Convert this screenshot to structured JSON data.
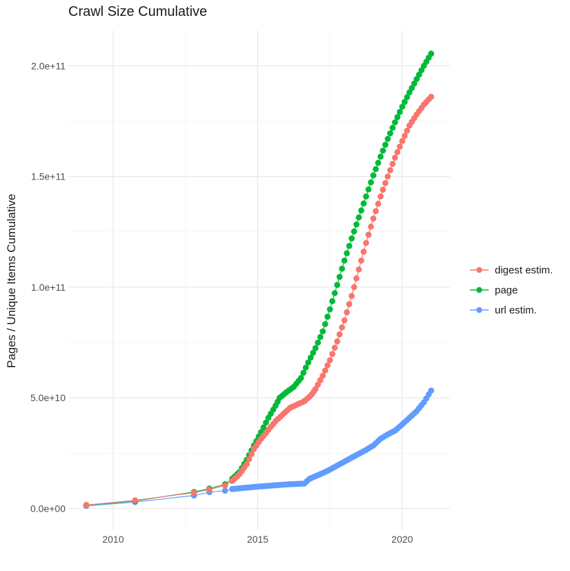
{
  "page": {
    "background": "#FFFFFF"
  },
  "chart_data": {
    "type": "line",
    "title": "Crawl Size Cumulative",
    "xlabel": "",
    "ylabel": "Pages / Unique Items Cumulative",
    "grid": true,
    "legend_position": "right",
    "xlim": [
      2008.45,
      2021.65
    ],
    "ylim": [
      -9500000000.0,
      216000000000.0
    ],
    "x_axis": {
      "ticks": [
        {
          "v": 2010,
          "label": "2010"
        },
        {
          "v": 2015,
          "label": "2015"
        },
        {
          "v": 2020,
          "label": "2020"
        }
      ],
      "minor": [
        2012.5,
        2017.5
      ]
    },
    "y_axis": {
      "ticks": [
        {
          "v": 0,
          "label": "0.0e+00"
        },
        {
          "v": 50000000000.0,
          "label": "5.0e+10"
        },
        {
          "v": 100000000000.0,
          "label": "1.0e+11"
        },
        {
          "v": 150000000000.0,
          "label": "1.5e+11"
        },
        {
          "v": 200000000000.0,
          "label": "2.0e+11"
        }
      ],
      "minor": [
        25000000000.0,
        75000000000.0,
        125000000000.0,
        175000000000.0
      ]
    },
    "colors": {
      "grid_major": "#E8E8E8",
      "grid_minor": "#F3F3F3",
      "tick_label": "#4D4D4D",
      "text": "#1A1A1A"
    },
    "point_interval_years": 0.0833,
    "dense_from_year": 2013.9,
    "series": [
      {
        "name": "digest estim.",
        "color": "#F8766D",
        "points": [
          [
            2009.07,
            1600000000.0
          ],
          [
            2010.76,
            3700000000.0
          ],
          [
            2012.8,
            7200000000.0
          ],
          [
            2013.33,
            8600000000.0
          ],
          [
            2013.87,
            10400000000.0
          ],
          [
            2014.12,
            12500000000.0
          ],
          [
            2014.37,
            15500000000.0
          ],
          [
            2014.62,
            20000000000.0
          ],
          [
            2014.87,
            27000000000.0
          ],
          [
            2015.12,
            31500000000.0
          ],
          [
            2015.37,
            35500000000.0
          ],
          [
            2015.62,
            39500000000.0
          ],
          [
            2015.87,
            42500000000.0
          ],
          [
            2016.12,
            45500000000.0
          ],
          [
            2016.37,
            47000000000.0
          ],
          [
            2016.62,
            48500000000.0
          ],
          [
            2016.87,
            51500000000.0
          ],
          [
            2017.0,
            54000000000.0
          ],
          [
            2017.25,
            60000000000.0
          ],
          [
            2017.5,
            67000000000.0
          ],
          [
            2017.75,
            75500000000.0
          ],
          [
            2018.0,
            85000000000.0
          ],
          [
            2018.25,
            96000000000.0
          ],
          [
            2018.5,
            108000000000.0
          ],
          [
            2018.75,
            120000000000.0
          ],
          [
            2019.0,
            131000000000.0
          ],
          [
            2019.25,
            141000000000.0
          ],
          [
            2019.5,
            150000000000.0
          ],
          [
            2019.75,
            158500000000.0
          ],
          [
            2020.0,
            166000000000.0
          ],
          [
            2020.25,
            173000000000.0
          ],
          [
            2020.5,
            178000000000.0
          ],
          [
            2020.75,
            182500000000.0
          ],
          [
            2021.0,
            186000000000.0
          ]
        ]
      },
      {
        "name": "page",
        "color": "#00BA38",
        "points": [
          [
            2009.07,
            1500000000.0
          ],
          [
            2010.76,
            3400000000.0
          ],
          [
            2012.8,
            7500000000.0
          ],
          [
            2013.33,
            9000000000.0
          ],
          [
            2013.87,
            11000000000.0
          ],
          [
            2014.12,
            13500000000.0
          ],
          [
            2014.37,
            16500000000.0
          ],
          [
            2014.62,
            22000000000.0
          ],
          [
            2014.87,
            28500000000.0
          ],
          [
            2015.12,
            34500000000.0
          ],
          [
            2015.37,
            41000000000.0
          ],
          [
            2015.62,
            46500000000.0
          ],
          [
            2015.76,
            50000000000.0
          ],
          [
            2016.0,
            52600000000.0
          ],
          [
            2016.25,
            55000000000.0
          ],
          [
            2016.5,
            59000000000.0
          ],
          [
            2016.75,
            66000000000.0
          ],
          [
            2017.0,
            72500000000.0
          ],
          [
            2017.25,
            80000000000.0
          ],
          [
            2017.5,
            90000000000.0
          ],
          [
            2017.75,
            101000000000.0
          ],
          [
            2018.0,
            112000000000.0
          ],
          [
            2018.25,
            122000000000.0
          ],
          [
            2018.5,
            131500000000.0
          ],
          [
            2018.75,
            141000000000.0
          ],
          [
            2019.0,
            150500000000.0
          ],
          [
            2019.25,
            159000000000.0
          ],
          [
            2019.5,
            167000000000.0
          ],
          [
            2019.75,
            174500000000.0
          ],
          [
            2020.0,
            181500000000.0
          ],
          [
            2020.25,
            188000000000.0
          ],
          [
            2020.5,
            194000000000.0
          ],
          [
            2020.75,
            200000000000.0
          ],
          [
            2021.0,
            205500000000.0
          ]
        ]
      },
      {
        "name": "url estim.",
        "color": "#619CFF",
        "points": [
          [
            2009.07,
            1200000000.0
          ],
          [
            2010.76,
            2900000000.0
          ],
          [
            2012.8,
            5900000000.0
          ],
          [
            2013.33,
            7400000000.0
          ],
          [
            2013.87,
            8100000000.0
          ],
          [
            2014.12,
            8800000000.0
          ],
          [
            2014.5,
            9300000000.0
          ],
          [
            2015.0,
            9900000000.0
          ],
          [
            2015.5,
            10400000000.0
          ],
          [
            2016.0,
            10900000000.0
          ],
          [
            2016.3,
            11100000000.0
          ],
          [
            2016.62,
            11300000000.0
          ],
          [
            2016.79,
            13400000000.0
          ],
          [
            2017.0,
            14600000000.0
          ],
          [
            2017.25,
            16000000000.0
          ],
          [
            2017.5,
            17600000000.0
          ],
          [
            2017.75,
            19400000000.0
          ],
          [
            2018.0,
            21200000000.0
          ],
          [
            2018.25,
            23000000000.0
          ],
          [
            2018.5,
            24700000000.0
          ],
          [
            2018.75,
            26500000000.0
          ],
          [
            2019.0,
            28500000000.0
          ],
          [
            2019.25,
            31500000000.0
          ],
          [
            2019.5,
            33500000000.0
          ],
          [
            2019.75,
            35200000000.0
          ],
          [
            2020.0,
            38000000000.0
          ],
          [
            2020.25,
            41000000000.0
          ],
          [
            2020.5,
            44000000000.0
          ],
          [
            2020.75,
            48000000000.0
          ],
          [
            2021.0,
            53300000000.0
          ]
        ]
      }
    ]
  }
}
